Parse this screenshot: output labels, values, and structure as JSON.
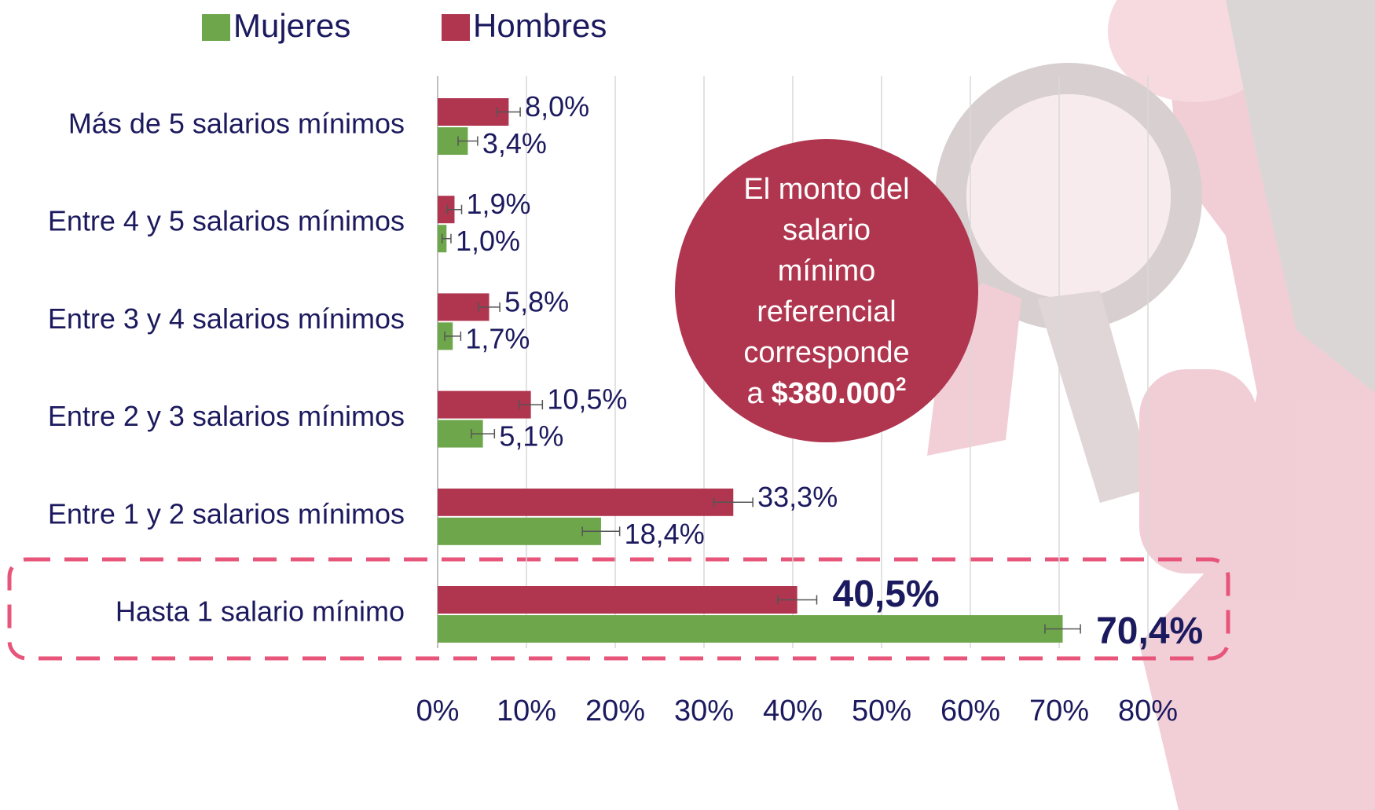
{
  "chart_data": {
    "type": "bar",
    "orientation": "horizontal",
    "categories": [
      "Más de 5 salarios mínimos",
      "Entre 4 y 5 salarios mínimos",
      "Entre 3 y 4 salarios mínimos",
      "Entre 2 y 3 salarios mínimos",
      "Entre 1 y 2 salarios mínimos",
      "Hasta 1 salario mínimo"
    ],
    "series": [
      {
        "name": "Mujeres",
        "color": "#6ea64b",
        "values": [
          3.4,
          1.0,
          1.7,
          5.1,
          18.4,
          70.4
        ],
        "value_labels": [
          "3,4%",
          "1,0%",
          "1,7%",
          "5,1%",
          "18,4%",
          "70,4%"
        ],
        "errors": [
          1.1,
          0.5,
          0.9,
          1.3,
          2.1,
          2.0
        ]
      },
      {
        "name": "Hombres",
        "color": "#b0354f",
        "values": [
          8.0,
          1.9,
          5.8,
          10.5,
          33.3,
          40.5
        ],
        "value_labels": [
          "8,0%",
          "1,9%",
          "5,8%",
          "10,5%",
          "33,3%",
          "40,5%"
        ],
        "errors": [
          1.3,
          0.8,
          1.2,
          1.3,
          2.2,
          2.2
        ]
      }
    ],
    "xlim": [
      0,
      80
    ],
    "xticks": [
      {
        "value": 0,
        "label": "0%"
      },
      {
        "value": 10,
        "label": "10%"
      },
      {
        "value": 20,
        "label": "20%"
      },
      {
        "value": 30,
        "label": "30%"
      },
      {
        "value": 40,
        "label": "40%"
      },
      {
        "value": 50,
        "label": "50%"
      },
      {
        "value": 60,
        "label": "60%"
      },
      {
        "value": 70,
        "label": "70%"
      },
      {
        "value": 80,
        "label": "80%"
      }
    ],
    "grid": true,
    "legend": "top",
    "highlight": 5,
    "annotation": {
      "lines": [
        "El monto del",
        "salario",
        "mínimo",
        "referencial",
        "corresponde"
      ],
      "last_prefix": "a",
      "amount": "$380.000",
      "superscript": "2"
    }
  }
}
